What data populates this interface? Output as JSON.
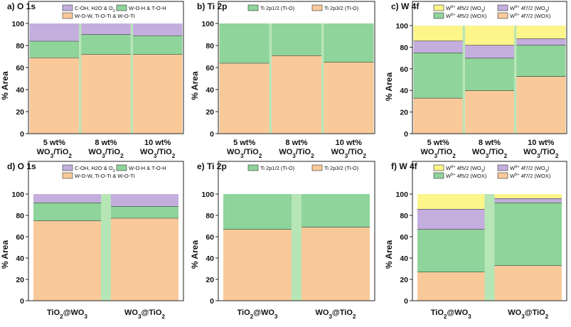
{
  "colors": {
    "orange": "#f9c99a",
    "green": "#8fd49a",
    "purple": "#c4aedd",
    "yellow": "#fbf58a",
    "boundary": "#b6e5b6",
    "segment_line": "#222222"
  },
  "chart_data": [
    {
      "id": "a",
      "type": "bar",
      "stacked": true,
      "title": "a) O 1s",
      "ylabel": "% Area",
      "ylim": [
        0,
        100
      ],
      "yticks": [
        0,
        20,
        40,
        60,
        80,
        100
      ],
      "categories": [
        [
          "5 wt%",
          "WO3/TiO2"
        ],
        [
          "8 wt%",
          "WO3/TiO2"
        ],
        [
          "10 wt%",
          "WO3/TiO2"
        ]
      ],
      "series": [
        {
          "name": "W-O-W, Ti-O-Ti & W-O-Ti",
          "color": "#f9c99a",
          "values": [
            69,
            72,
            72
          ]
        },
        {
          "name": "W-O-H & T-O-H",
          "color": "#8fd49a",
          "values": [
            15,
            18,
            17
          ]
        },
        {
          "name": "C-OH, H2O & O2",
          "color": "#c4aedd",
          "values": [
            16,
            10,
            11
          ]
        }
      ],
      "legend_order": [
        2,
        1,
        0
      ]
    },
    {
      "id": "b",
      "type": "bar",
      "stacked": true,
      "title": "b) Ti 2p",
      "ylabel": "% Area",
      "ylim": [
        0,
        100
      ],
      "yticks": [
        0,
        20,
        40,
        60,
        80,
        100
      ],
      "categories": [
        [
          "5 wt%",
          "WO3/TiO2"
        ],
        [
          "8 wt%",
          "WO3/TiO2"
        ],
        [
          "10 wt%",
          "WO3/TiO2"
        ]
      ],
      "series": [
        {
          "name": "Ti 2p3/2 (Ti-O)",
          "color": "#f9c99a",
          "values": [
            64,
            71,
            65
          ]
        },
        {
          "name": "Ti 2p1/2 (Ti-O)",
          "color": "#8fd49a",
          "values": [
            36,
            29,
            35
          ]
        }
      ],
      "legend_order": [
        1,
        0
      ]
    },
    {
      "id": "c",
      "type": "bar",
      "stacked": true,
      "title": "c) W 4f",
      "ylabel": "% Area",
      "ylim": [
        0,
        100
      ],
      "yticks": [
        0,
        20,
        40,
        60,
        80,
        100
      ],
      "categories": [
        [
          "5 wt%",
          "WO3/TiO2"
        ],
        [
          "8 wt%",
          "WO3/TiO2"
        ],
        [
          "10 wt%",
          "WO3/TiO2"
        ]
      ],
      "series": [
        {
          "name": "W5+ 4f7/2 (WOX)",
          "color": "#f9c99a",
          "values": [
            33,
            40,
            53
          ]
        },
        {
          "name": "W5+ 4f5/2 (WOX)",
          "color": "#8fd49a",
          "values": [
            42,
            30,
            29
          ]
        },
        {
          "name": "W6+ 4f7/2 (WO3)",
          "color": "#c4aedd",
          "values": [
            11,
            12,
            6
          ]
        },
        {
          "name": "W6+ 4f5/2 (WO3)",
          "color": "#fbf58a",
          "values": [
            14,
            18,
            12
          ]
        }
      ],
      "legend_order": [
        3,
        2,
        1,
        0
      ]
    },
    {
      "id": "d",
      "type": "bar",
      "stacked": true,
      "title": "d) O 1s",
      "ylabel": "% Area",
      "ylim": [
        0,
        100
      ],
      "yticks": [
        0,
        20,
        40,
        60,
        80,
        100
      ],
      "categories": [
        [
          "TiO2@WO3"
        ],
        [
          "WO3@TiO2"
        ]
      ],
      "series": [
        {
          "name": "W-O-W, Ti-O-Ti & W-O-Ti",
          "color": "#f9c99a",
          "values": [
            75,
            77.5
          ]
        },
        {
          "name": "W-O-H & T-O-H",
          "color": "#8fd49a",
          "values": [
            17,
            11
          ]
        },
        {
          "name": "C-OH, H2O & O2",
          "color": "#c4aedd",
          "values": [
            8,
            11.5
          ]
        }
      ],
      "legend_order": [
        2,
        1,
        0
      ]
    },
    {
      "id": "e",
      "type": "bar",
      "stacked": true,
      "title": "e) Ti 2p",
      "ylabel": "% Area",
      "ylim": [
        0,
        100
      ],
      "yticks": [
        0,
        20,
        40,
        60,
        80,
        100
      ],
      "categories": [
        [
          "TiO2@WO3"
        ],
        [
          "WO3@TiO2"
        ]
      ],
      "series": [
        {
          "name": "Ti 2p3/2 (Ti-O)",
          "color": "#f9c99a",
          "values": [
            67,
            69
          ]
        },
        {
          "name": "Ti 2p1/2 (Ti-O)",
          "color": "#8fd49a",
          "values": [
            33,
            31
          ]
        }
      ],
      "legend_order": [
        1,
        0
      ]
    },
    {
      "id": "f",
      "type": "bar",
      "stacked": true,
      "title": "f) W 4f",
      "ylabel": "% Area",
      "ylim": [
        0,
        100
      ],
      "yticks": [
        0,
        20,
        40,
        60,
        80,
        100
      ],
      "categories": [
        [
          "TiO2@WO3"
        ],
        [
          "WO3@TiO2"
        ]
      ],
      "series": [
        {
          "name": "W5+ 4f7/2 (WOX)",
          "color": "#f9c99a",
          "values": [
            27,
            33
          ]
        },
        {
          "name": "W5+ 4f5/2 (WOX)",
          "color": "#8fd49a",
          "values": [
            40,
            59
          ]
        },
        {
          "name": "W6+ 4f7/2 (WO3)",
          "color": "#c4aedd",
          "values": [
            19,
            4
          ]
        },
        {
          "name": "W6+ 4f5/2 (WO3)",
          "color": "#fbf58a",
          "values": [
            14,
            4
          ]
        }
      ],
      "legend_order": [
        3,
        2,
        1,
        0
      ]
    }
  ]
}
